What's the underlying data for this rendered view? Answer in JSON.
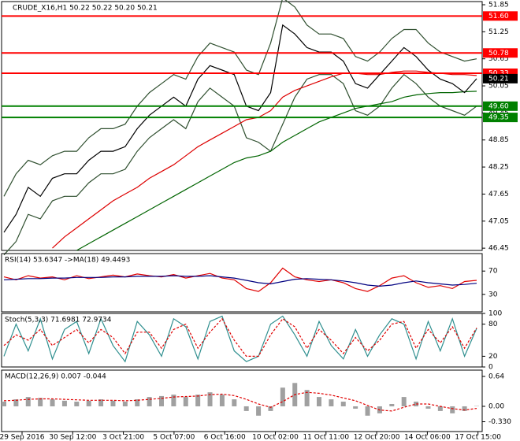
{
  "chart_data": [
    {
      "type": "line",
      "title": "CRUDE_X16,H1  50.22 50.22 50.20 50.21",
      "ylim": [
        46.4,
        51.92
      ],
      "yticks": [
        51.85,
        51.25,
        50.65,
        50.05,
        49.45,
        48.85,
        48.25,
        47.65,
        47.05,
        46.45
      ],
      "series": [
        {
          "color": "#2f4f2f",
          "values": [
            47.6,
            48.1,
            48.4,
            48.3,
            48.5,
            48.6,
            48.6,
            48.9,
            49.1,
            49.1,
            49.2,
            49.6,
            49.9,
            50.1,
            50.3,
            50.2,
            50.7,
            51.0,
            50.9,
            50.8,
            50.4,
            50.3,
            51.0,
            52.0,
            51.8,
            51.4,
            51.2,
            51.2,
            51.1,
            50.7,
            50.6,
            50.8,
            51.1,
            51.3,
            51.3,
            51.0,
            50.8,
            50.7,
            50.6,
            50.65
          ]
        },
        {
          "color": "#2f4f2f",
          "values": [
            46.3,
            46.6,
            47.2,
            47.1,
            47.5,
            47.6,
            47.6,
            47.9,
            48.1,
            48.1,
            48.2,
            48.6,
            48.9,
            49.1,
            49.3,
            49.1,
            49.7,
            50.0,
            49.8,
            49.6,
            48.9,
            48.8,
            48.6,
            49.2,
            49.8,
            50.2,
            50.3,
            50.3,
            50.1,
            49.5,
            49.4,
            49.6,
            50.0,
            50.3,
            50.1,
            49.8,
            49.6,
            49.5,
            49.4,
            49.6
          ]
        },
        {
          "color": "#dd0000",
          "values": [
            null,
            null,
            null,
            null,
            46.45,
            46.7,
            46.9,
            47.1,
            47.3,
            47.5,
            47.65,
            47.8,
            48.0,
            48.15,
            48.3,
            48.5,
            48.7,
            48.85,
            49.0,
            49.15,
            49.3,
            49.35,
            49.5,
            49.8,
            49.95,
            50.05,
            50.15,
            50.25,
            50.33,
            50.33,
            50.3,
            50.3,
            50.35,
            50.38,
            50.38,
            50.35,
            50.33,
            50.3,
            50.3,
            50.28
          ]
        },
        {
          "color": "#006400",
          "values": [
            null,
            null,
            null,
            null,
            null,
            null,
            46.4,
            46.55,
            46.7,
            46.85,
            47.0,
            47.15,
            47.3,
            47.45,
            47.6,
            47.75,
            47.9,
            48.05,
            48.2,
            48.35,
            48.45,
            48.5,
            48.6,
            48.8,
            48.95,
            49.1,
            49.25,
            49.35,
            49.45,
            49.55,
            49.6,
            49.65,
            49.7,
            49.8,
            49.85,
            49.88,
            49.9,
            49.9,
            49.92,
            49.93
          ]
        },
        {
          "color": "#000000",
          "values": [
            46.8,
            47.2,
            47.8,
            47.6,
            48.0,
            48.1,
            48.1,
            48.4,
            48.6,
            48.6,
            48.7,
            49.1,
            49.4,
            49.6,
            49.8,
            49.6,
            50.2,
            50.5,
            50.4,
            50.3,
            49.6,
            49.5,
            49.9,
            51.4,
            51.2,
            50.9,
            50.8,
            50.8,
            50.6,
            50.1,
            50.0,
            50.3,
            50.6,
            50.9,
            50.7,
            50.4,
            50.2,
            50.1,
            49.9,
            50.21
          ]
        }
      ],
      "levels": [
        {
          "value": 51.6,
          "label": "51.60",
          "color": "#ff0000"
        },
        {
          "value": 50.78,
          "label": "50.78",
          "color": "#ff0000"
        },
        {
          "value": 50.33,
          "label": "50.33",
          "color": "#ff0000"
        },
        {
          "value": 49.6,
          "label": "49.60",
          "color": "#008000"
        },
        {
          "value": 49.35,
          "label": "49.35",
          "color": "#008000"
        }
      ],
      "last_price": 50.21
    },
    {
      "type": "line",
      "title": "RSI(14) 53.6347 ->MA(18) 49.4493",
      "ylim": [
        0,
        100
      ],
      "yticks": [
        70,
        30
      ],
      "series": [
        {
          "color": "#e00000",
          "values": [
            60,
            55,
            62,
            58,
            60,
            55,
            62,
            57,
            60,
            63,
            60,
            65,
            62,
            60,
            64,
            58,
            62,
            66,
            58,
            55,
            40,
            35,
            50,
            75,
            60,
            55,
            52,
            55,
            50,
            40,
            35,
            45,
            58,
            62,
            50,
            42,
            45,
            40,
            52,
            54
          ]
        },
        {
          "color": "#000080",
          "values": [
            55,
            56,
            57,
            57,
            58,
            58,
            59,
            59,
            59,
            60,
            60,
            61,
            61,
            61,
            62,
            61,
            61,
            62,
            60,
            58,
            54,
            50,
            48,
            52,
            56,
            57,
            56,
            55,
            53,
            50,
            46,
            44,
            46,
            50,
            53,
            50,
            48,
            46,
            47,
            49
          ]
        }
      ]
    },
    {
      "type": "line",
      "title": "Stoch(5,3,3) 71.6981 72.9734",
      "ylim": [
        0,
        100
      ],
      "yticks": [
        100,
        80,
        20,
        0
      ],
      "series": [
        {
          "color": "#2f8f8f",
          "values": [
            20,
            80,
            30,
            90,
            15,
            70,
            85,
            25,
            90,
            40,
            10,
            85,
            60,
            20,
            90,
            75,
            15,
            85,
            95,
            30,
            10,
            20,
            80,
            95,
            60,
            20,
            85,
            40,
            15,
            70,
            20,
            60,
            90,
            80,
            15,
            85,
            30,
            90,
            20,
            72
          ]
        },
        {
          "color": "#e00000",
          "dash": true,
          "values": [
            40,
            60,
            50,
            70,
            40,
            55,
            70,
            45,
            70,
            55,
            25,
            65,
            65,
            35,
            70,
            80,
            35,
            65,
            90,
            50,
            20,
            20,
            60,
            90,
            75,
            35,
            70,
            50,
            25,
            55,
            30,
            50,
            80,
            85,
            35,
            70,
            45,
            75,
            35,
            73
          ]
        }
      ]
    },
    {
      "type": "bar",
      "title": "MACD(12,26,9) 0.007 -0.044",
      "ylim": [
        -0.54,
        0.775
      ],
      "yticks": [
        0.64,
        {
          "value": 0,
          "label": "0.00"
        },
        {
          "value": -0.33,
          "label": "-0.330"
        }
      ],
      "series": [
        {
          "color": "#a0a0a0",
          "values": [
            0.1,
            0.15,
            0.2,
            0.18,
            0.15,
            0.12,
            0.1,
            0.12,
            0.15,
            0.12,
            0.1,
            0.15,
            0.2,
            0.22,
            0.25,
            0.2,
            0.25,
            0.3,
            0.25,
            0.15,
            -0.1,
            -0.2,
            -0.1,
            0.4,
            0.5,
            0.35,
            0.2,
            0.15,
            0.1,
            -0.05,
            -0.2,
            -0.15,
            0.05,
            0.2,
            0.1,
            -0.05,
            -0.1,
            -0.15,
            -0.1,
            0.007
          ]
        },
        {
          "color": "#e00000",
          "dash": true,
          "values": [
            0.12,
            0.13,
            0.15,
            0.16,
            0.16,
            0.15,
            0.14,
            0.13,
            0.13,
            0.13,
            0.12,
            0.13,
            0.15,
            0.17,
            0.2,
            0.21,
            0.22,
            0.25,
            0.26,
            0.23,
            0.15,
            0.05,
            -0.02,
            0.1,
            0.25,
            0.3,
            0.28,
            0.24,
            0.18,
            0.12,
            0.02,
            -0.08,
            -0.1,
            -0.02,
            0.05,
            0.05,
            0.0,
            -0.05,
            -0.08,
            -0.044
          ]
        }
      ]
    }
  ],
  "time_labels": [
    "29 Sep 2016",
    "30 Sep 12:00",
    "3 Oct 21:00",
    "5 Oct 07:00",
    "6 Oct 16:00",
    "10 Oct 02:00",
    "11 Oct 11:00",
    "12 Oct 20:00",
    "14 Oct 06:00",
    "17 Oct 15:00"
  ]
}
